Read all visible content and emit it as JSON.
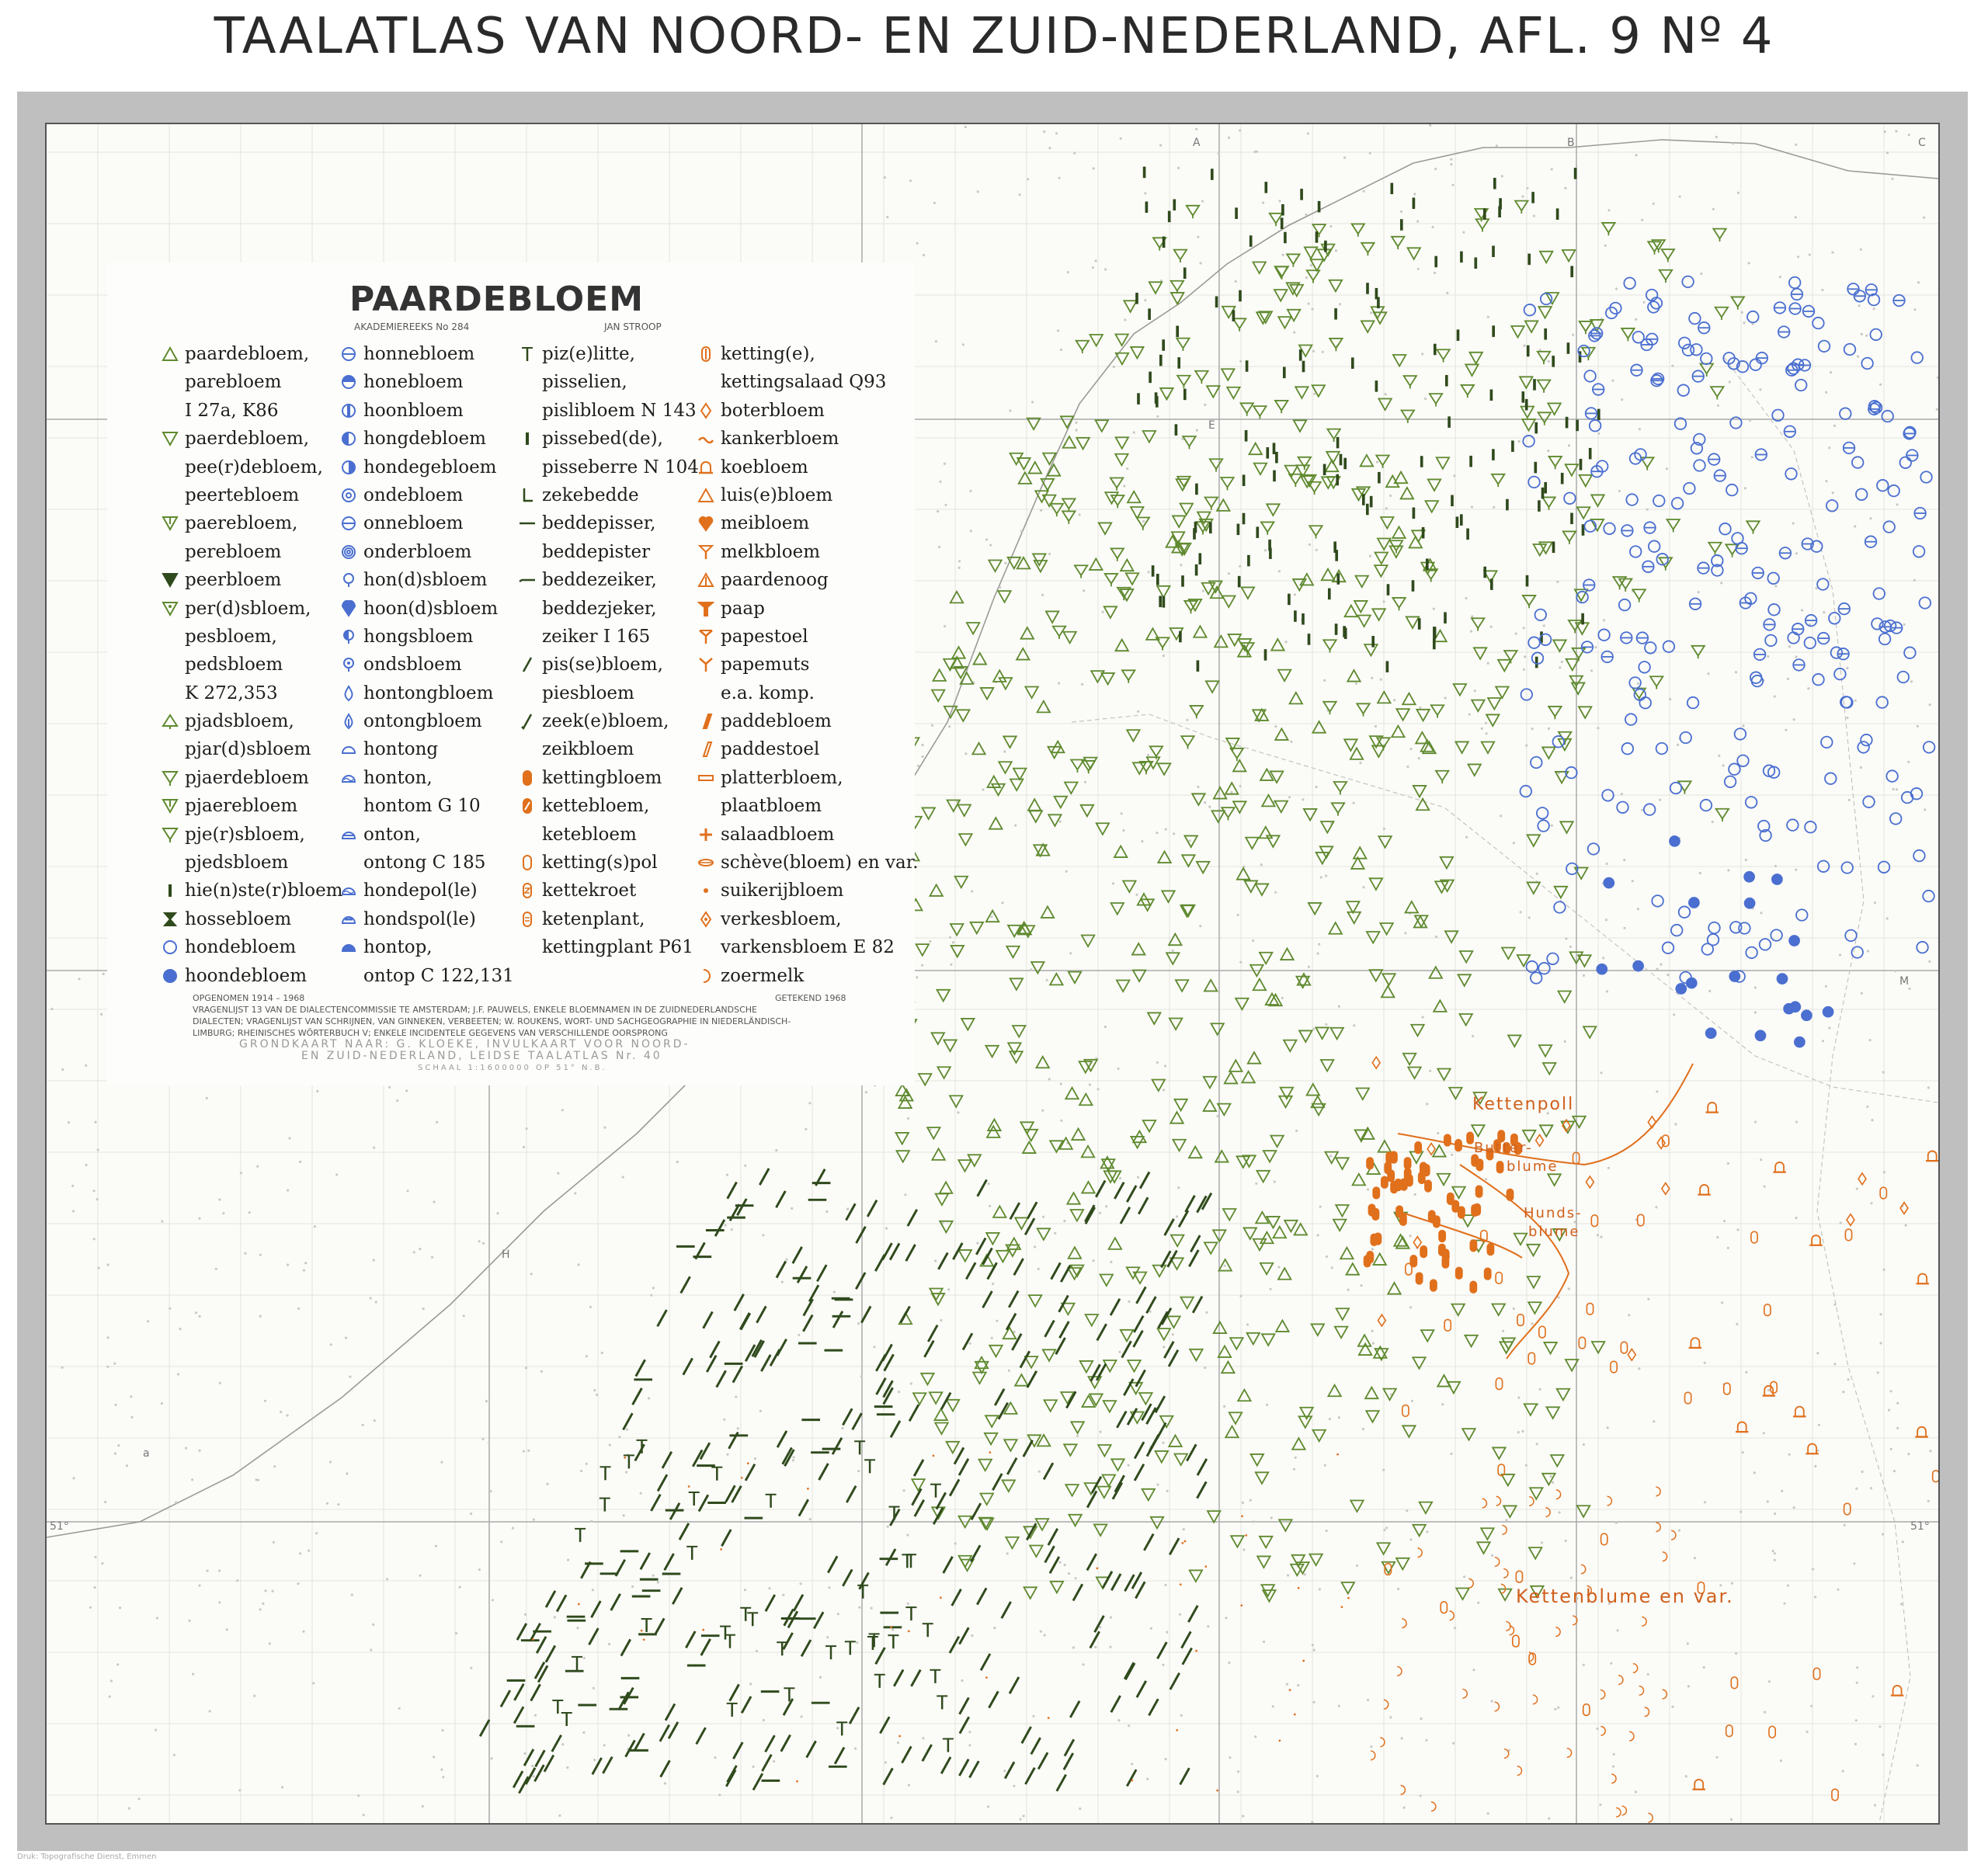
{
  "title": "TAALATLAS VAN NOORD- EN ZUID-NEDERLAND, AFL. 9 Nº 4",
  "map": {
    "heading": "PAARDEBLOEM",
    "series": "AKADEMIEREEKS No 284",
    "author": "JAN STROOP",
    "colors": {
      "green": "#5f8a2f",
      "darkgreen": "#2f4a1c",
      "blue": "#4a6fd0",
      "orange": "#e0701c"
    },
    "legend_col1": [
      {
        "symbol": "triangle-up",
        "color": "green",
        "text": "paardebloem,"
      },
      {
        "symbol": "",
        "color": "",
        "text": "parebloem"
      },
      {
        "symbol": "",
        "color": "",
        "text": "I 27a, K86"
      },
      {
        "symbol": "triangle-down",
        "color": "green",
        "text": "paerdebloem,"
      },
      {
        "symbol": "",
        "color": "",
        "text": "pee(r)debloem,"
      },
      {
        "symbol": "",
        "color": "",
        "text": "peertebloem"
      },
      {
        "symbol": "triangle-down-bar",
        "color": "green",
        "text": "paerebloem,"
      },
      {
        "symbol": "",
        "color": "",
        "text": "perebloem"
      },
      {
        "symbol": "triangle-down-filled",
        "color": "darkgreen",
        "text": "peerbloem"
      },
      {
        "symbol": "triangle-down-dot",
        "color": "green",
        "text": "per(d)sbloem,"
      },
      {
        "symbol": "",
        "color": "",
        "text": "pesbloem,"
      },
      {
        "symbol": "",
        "color": "",
        "text": "pedsbloem"
      },
      {
        "symbol": "",
        "color": "",
        "text": "K 272,353"
      },
      {
        "symbol": "triangle-up-stem",
        "color": "green",
        "text": "pjadsbloem,"
      },
      {
        "symbol": "",
        "color": "",
        "text": "pjar(d)sbloem"
      },
      {
        "symbol": "triangle-down-stem",
        "color": "green",
        "text": "pjaerdebloem"
      },
      {
        "symbol": "triangle-down-bar",
        "color": "green",
        "text": "pjaerebloem"
      },
      {
        "symbol": "triangle-down-stem",
        "color": "green",
        "text": "pje(r)sbloem,"
      },
      {
        "symbol": "",
        "color": "",
        "text": "pjedsbloem"
      },
      {
        "symbol": "bar",
        "color": "darkgreen",
        "text": "hie(n)ste(r)bloem"
      },
      {
        "symbol": "hourglass",
        "color": "darkgreen",
        "text": "hossebloem"
      },
      {
        "symbol": "circle",
        "color": "blue",
        "text": "hondebloem"
      },
      {
        "symbol": "circle-filled",
        "color": "blue",
        "text": "hoondebloem"
      }
    ],
    "legend_col2": [
      {
        "symbol": "circle-minus",
        "color": "blue",
        "text": "honnebloem"
      },
      {
        "symbol": "circle-top",
        "color": "blue",
        "text": "honebloem"
      },
      {
        "symbol": "circle-bar",
        "color": "blue",
        "text": "hoonbloem"
      },
      {
        "symbol": "circle-half",
        "color": "blue",
        "text": "hongdebloem"
      },
      {
        "symbol": "circle-half-r",
        "color": "blue",
        "text": "hondegebloem"
      },
      {
        "symbol": "circle-ring",
        "color": "blue",
        "text": "ondebloem"
      },
      {
        "symbol": "circle-minus",
        "color": "blue",
        "text": "onnebloem"
      },
      {
        "symbol": "circle-target",
        "color": "blue",
        "text": "onderbloem"
      },
      {
        "symbol": "pin",
        "color": "blue",
        "text": "hon(d)sbloem"
      },
      {
        "symbol": "pin-filled",
        "color": "blue",
        "text": "hoon(d)sbloem"
      },
      {
        "symbol": "pin-half",
        "color": "blue",
        "text": "hongsbloem"
      },
      {
        "symbol": "pin-dot",
        "color": "blue",
        "text": "ondsbloem"
      },
      {
        "symbol": "drop",
        "color": "blue",
        "text": "hontongbloem"
      },
      {
        "symbol": "drop-stem",
        "color": "blue",
        "text": "ontongbloem"
      },
      {
        "symbol": "dome",
        "color": "blue",
        "text": "hontong"
      },
      {
        "symbol": "dome-wave",
        "color": "blue",
        "text": "honton,"
      },
      {
        "symbol": "",
        "color": "",
        "text": "hontom G 10"
      },
      {
        "symbol": "dome-line",
        "color": "blue",
        "text": "onton,"
      },
      {
        "symbol": "",
        "color": "",
        "text": "ontong C 185"
      },
      {
        "symbol": "dome-wave",
        "color": "blue",
        "text": "hondepol(le)"
      },
      {
        "symbol": "dome-bar",
        "color": "blue",
        "text": "hondspol(le)"
      },
      {
        "symbol": "dome-filled",
        "color": "blue",
        "text": "hontop,"
      },
      {
        "symbol": "",
        "color": "",
        "text": "ontop C 122,131"
      }
    ],
    "legend_col3": [
      {
        "symbol": "t-bar",
        "color": "darkgreen",
        "text": "piz(e)litte,"
      },
      {
        "symbol": "",
        "color": "",
        "text": "pisselien,"
      },
      {
        "symbol": "",
        "color": "",
        "text": "pislibloem N 143"
      },
      {
        "symbol": "bar",
        "color": "darkgreen",
        "text": "pissebed(de),"
      },
      {
        "symbol": "",
        "color": "",
        "text": "pisseberre N 104"
      },
      {
        "symbol": "l-bar",
        "color": "darkgreen",
        "text": "zekebedde"
      },
      {
        "symbol": "dash",
        "color": "darkgreen",
        "text": "beddepisser,"
      },
      {
        "symbol": "",
        "color": "",
        "text": "beddepister"
      },
      {
        "symbol": "dash-hook",
        "color": "darkgreen",
        "text": "beddezeiker,"
      },
      {
        "symbol": "",
        "color": "",
        "text": "beddezjeker,"
      },
      {
        "symbol": "",
        "color": "",
        "text": "zeiker I 165"
      },
      {
        "symbol": "slash",
        "color": "darkgreen",
        "text": "pis(se)bloem,"
      },
      {
        "symbol": "",
        "color": "",
        "text": "piesbloem"
      },
      {
        "symbol": "slash-hook",
        "color": "darkgreen",
        "text": "zeek(e)bloem,"
      },
      {
        "symbol": "",
        "color": "",
        "text": "zeikbloem"
      },
      {
        "symbol": "capsule-filled",
        "color": "orange",
        "text": "kettingbloem"
      },
      {
        "symbol": "capsule-slash",
        "color": "orange",
        "text": "kettebloem,"
      },
      {
        "symbol": "",
        "color": "",
        "text": "ketebloem"
      },
      {
        "symbol": "capsule",
        "color": "orange",
        "text": "ketting(s)pol"
      },
      {
        "symbol": "capsule-zig",
        "color": "orange",
        "text": "kettekroet"
      },
      {
        "symbol": "capsule-double",
        "color": "orange",
        "text": "ketenplant,"
      },
      {
        "symbol": "",
        "color": "",
        "text": "kettingplant P61"
      }
    ],
    "legend_col4": [
      {
        "symbol": "capsule-bar",
        "color": "orange",
        "text": "ketting(e),"
      },
      {
        "symbol": "",
        "color": "",
        "text": "kettingsalaad Q93"
      },
      {
        "symbol": "diamond",
        "color": "orange",
        "text": "boterbloem"
      },
      {
        "symbol": "tilde",
        "color": "orange",
        "text": "kankerbloem"
      },
      {
        "symbol": "arch-base",
        "color": "orange",
        "text": "koebloem"
      },
      {
        "symbol": "triangle-up",
        "color": "orange",
        "text": "luis(e)bloem"
      },
      {
        "symbol": "heart",
        "color": "orange",
        "text": "meibloem"
      },
      {
        "symbol": "y-cup",
        "color": "orange",
        "text": "melkbloem"
      },
      {
        "symbol": "triangle-stripe",
        "color": "orange",
        "text": "paardenoog"
      },
      {
        "symbol": "t-filled",
        "color": "orange",
        "text": "paap"
      },
      {
        "symbol": "y-bar",
        "color": "orange",
        "text": "papestoel"
      },
      {
        "symbol": "y",
        "color": "orange",
        "text": "papemuts"
      },
      {
        "symbol": "",
        "color": "",
        "text": "e.a. komp."
      },
      {
        "symbol": "slab-filled",
        "color": "orange",
        "text": "paddebloem"
      },
      {
        "symbol": "slab",
        "color": "orange",
        "text": "paddestoel"
      },
      {
        "symbol": "rect",
        "color": "orange",
        "text": "platterbloem,"
      },
      {
        "symbol": "",
        "color": "",
        "text": "plaatbloem"
      },
      {
        "symbol": "plus",
        "color": "orange",
        "text": "salaadbloem"
      },
      {
        "symbol": "ellipse-line",
        "color": "orange",
        "text": "schève(bloem) en var."
      },
      {
        "symbol": "dot",
        "color": "orange",
        "text": "suikerijbloem"
      },
      {
        "symbol": "diamond-dot",
        "color": "orange",
        "text": "verkesbloem,"
      },
      {
        "symbol": "",
        "color": "",
        "text": "varkensbloem E 82"
      },
      {
        "symbol": "crescent",
        "color": "orange",
        "text": "zoermelk"
      }
    ],
    "notes_left": "OPGENOMEN 1914 – 1968",
    "notes_right": "GETEKEND 1968",
    "source_text_1": "VRAGENLIJST 13 VAN DE DIALECTENCOMMISSIE TE AMSTERDAM; J.F. PAUWELS, ENKELE BLOEMNAMEN IN DE ZUIDNEDERLANDSCHE",
    "source_text_2": "DIALECTEN; VRAGENLIJST VAN SCHRIJNEN, VAN GINNEKEN, VERBEETEN; W. ROUKENS, WORT- UND SACHGEOGRAPHIE IN NIEDERLÄNDISCH-",
    "source_text_3": "LIMBURG; RHEINISCHES WÖRTERBUCH V; ENKELE INCIDENTELE GEGEVENS VAN VERSCHILLENDE OORSPRONG",
    "grondkaart_1": "GRONDKAART NAAR: G. KLOEKE, INVULKAART VOOR NOORD-",
    "grondkaart_2": "EN ZUID-NEDERLAND, LEIDSE TAALATLAS Nr. 40",
    "scale": "SCHAAL 1:1600000  OP 51° N.B.",
    "labels": {
      "kettenpoll": "Kettenpoll",
      "butterblume_1": "Butter-",
      "butterblume_2": "blume",
      "hundsblume_1": "Hunds-",
      "hundsblume_2": "blume",
      "kettenblume": "Kettenblume en var."
    },
    "grid_letters": [
      "A",
      "B",
      "C",
      "E",
      "D",
      "H",
      "M",
      "a"
    ],
    "latitude_label": "51°"
  },
  "footer": "Druk: Topografische Dienst, Emmen"
}
